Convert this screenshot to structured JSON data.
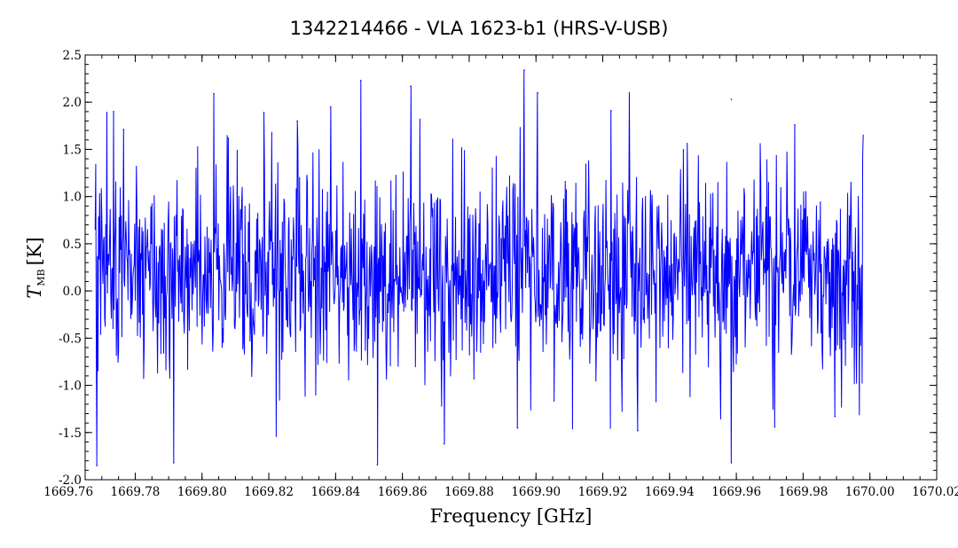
{
  "chart_data": {
    "type": "line",
    "title": "1342214466 - VLA 1623-b1 (HRS-V-USB)",
    "xlabel": "Frequency [GHz]",
    "ylabel_main": "T",
    "ylabel_sub": "MB",
    "ylabel_unit": "[K]",
    "xlim": [
      1669.765,
      1670.02
    ],
    "ylim": [
      -2.0,
      2.5
    ],
    "x_ticks": [
      1669.76,
      1669.78,
      1669.8,
      1669.82,
      1669.84,
      1669.86,
      1669.88,
      1669.9,
      1669.92,
      1669.94,
      1669.96,
      1669.98,
      1670.0,
      1670.02
    ],
    "x_tick_labels": [
      "1669.76",
      "1669.78",
      "1669.80",
      "1669.82",
      "1669.84",
      "1669.86",
      "1669.88",
      "1669.90",
      "1669.92",
      "1669.94",
      "1669.96",
      "1669.98",
      "1670.00",
      "1670.02"
    ],
    "y_ticks": [
      -2.0,
      -1.5,
      -1.0,
      -0.5,
      0.0,
      0.5,
      1.0,
      1.5,
      2.0,
      2.5
    ],
    "y_tick_labels": [
      "-2.0",
      "-1.5",
      "-1.0",
      "-0.5",
      "0.0",
      "0.5",
      "1.0",
      "1.5",
      "2.0",
      "2.5"
    ],
    "x_minor_step": 0.005,
    "y_minor_step": 0.1,
    "series_color": "#0000ff",
    "grid": false,
    "series": [
      {
        "x_start": 1669.768,
        "x_end": 1669.998,
        "n_points": 1380,
        "mean": 0.2,
        "std": 0.55,
        "min": -1.85,
        "max": 2.34,
        "noise_seed": 1342214466,
        "notable_points": [
          {
            "x": 1669.7685,
            "y": -1.85
          },
          {
            "x": 1669.7715,
            "y": 1.89
          },
          {
            "x": 1669.7735,
            "y": 1.9
          },
          {
            "x": 1669.7765,
            "y": 1.71
          },
          {
            "x": 1669.7915,
            "y": -1.82
          },
          {
            "x": 1669.8035,
            "y": 2.09
          },
          {
            "x": 1669.8185,
            "y": 1.89
          },
          {
            "x": 1669.8285,
            "y": 1.8
          },
          {
            "x": 1669.8385,
            "y": 1.95
          },
          {
            "x": 1669.8475,
            "y": 2.23
          },
          {
            "x": 1669.8525,
            "y": -1.84
          },
          {
            "x": 1669.8625,
            "y": 2.17
          },
          {
            "x": 1669.8725,
            "y": -1.62
          },
          {
            "x": 1669.8945,
            "y": -1.45
          },
          {
            "x": 1669.8965,
            "y": 2.34
          },
          {
            "x": 1669.9005,
            "y": 2.1
          },
          {
            "x": 1669.9225,
            "y": 1.91
          },
          {
            "x": 1669.9305,
            "y": -1.48
          },
          {
            "x": 1669.9585,
            "y": 2.03
          },
          {
            "x": 1669.9585,
            "y": -1.82
          },
          {
            "x": 1669.9715,
            "y": -1.44
          },
          {
            "x": 1669.9775,
            "y": 1.76
          },
          {
            "x": 1669.9895,
            "y": -1.33
          }
        ]
      }
    ]
  }
}
